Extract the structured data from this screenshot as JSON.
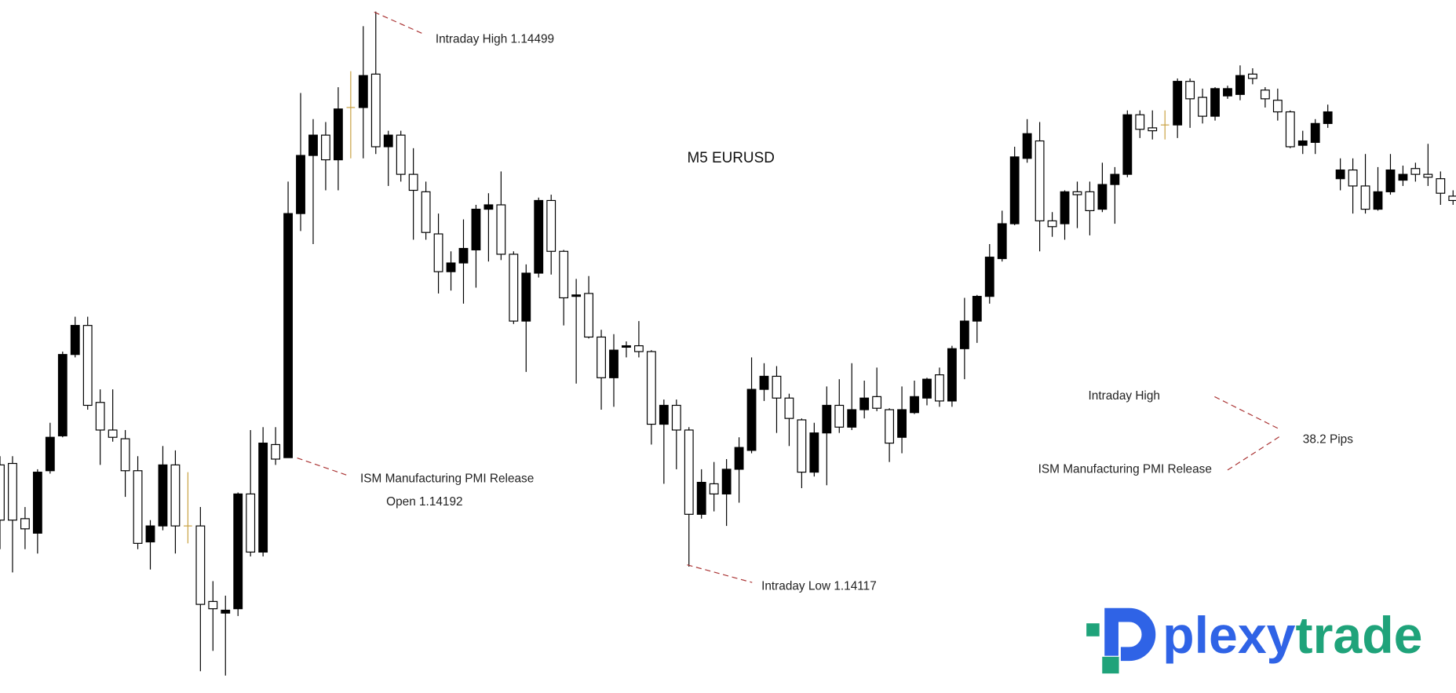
{
  "chart_data": {
    "type": "candlestick",
    "title": "M5 EURUSD",
    "up_color": "#000000",
    "down_color": "#ffffff",
    "doji_color": "#c8a040",
    "ylim": [
      1.1403,
      1.14507
    ],
    "open": [
      1.14187,
      1.14188,
      1.1415,
      1.1414,
      1.14183,
      1.14207,
      1.14263,
      1.14283,
      1.1423,
      1.14211,
      1.14205,
      1.14183,
      1.14134,
      1.14145,
      1.14187,
      1.14145,
      1.14145,
      1.14093,
      1.14085,
      1.14088,
      1.14167,
      1.14127,
      1.14201,
      1.14192,
      1.1436,
      1.144,
      1.14414,
      1.14397,
      1.14433,
      1.14433,
      1.14456,
      1.14406,
      1.14414,
      1.14387,
      1.14375,
      1.14346,
      1.1432,
      1.14326,
      1.14335,
      1.14363,
      1.14366,
      1.14332,
      1.14286,
      1.14319,
      1.14369,
      1.14334,
      1.14303,
      1.14305,
      1.14275,
      1.14247,
      1.14268,
      1.14269,
      1.14265,
      1.14215,
      1.14228,
      1.14211,
      1.14153,
      1.14174,
      1.14167,
      1.14184,
      1.14197,
      1.14239,
      1.14248,
      1.14233,
      1.14218,
      1.14182,
      1.14209,
      1.14228,
      1.14213,
      1.14225,
      1.14234,
      1.14225,
      1.14206,
      1.14223,
      1.14233,
      1.14249,
      1.14231,
      1.14267,
      1.14286,
      1.14303,
      1.14329,
      1.14353,
      1.14398,
      1.1441,
      1.14355,
      1.14353,
      1.14375,
      1.14375,
      1.14363,
      1.1438,
      1.14387,
      1.14428,
      1.14419,
      1.14421,
      1.14421,
      1.14451,
      1.1444,
      1.14427,
      1.14441,
      1.14442,
      1.14456,
      1.14445,
      1.14438,
      1.1443,
      1.14407,
      1.14409,
      1.14422,
      1.14384,
      1.1439,
      1.14379,
      1.14363,
      1.14375,
      1.14383,
      1.14391,
      1.14387,
      1.14384,
      1.14372
    ],
    "high": [
      1.14193,
      1.14193,
      1.14158,
      1.14184,
      1.14216,
      1.14265,
      1.14289,
      1.14289,
      1.14239,
      1.14239,
      1.14211,
      1.14193,
      1.14149,
      1.142,
      1.14197,
      1.14182,
      1.14158,
      1.14107,
      1.14097,
      1.14168,
      1.14211,
      1.14213,
      1.14213,
      1.14382,
      1.14443,
      1.14425,
      1.14423,
      1.14447,
      1.14458,
      1.14489,
      1.14499,
      1.14417,
      1.14417,
      1.14405,
      1.14382,
      1.1436,
      1.14334,
      1.14356,
      1.14366,
      1.14374,
      1.14389,
      1.14334,
      1.14325,
      1.14371,
      1.14373,
      1.14335,
      1.14315,
      1.14317,
      1.1428,
      1.14277,
      1.14272,
      1.14286,
      1.14266,
      1.14232,
      1.14232,
      1.14213,
      1.14184,
      1.14189,
      1.14191,
      1.14206,
      1.14261,
      1.14257,
      1.14255,
      1.14236,
      1.14219,
      1.14216,
      1.14241,
      1.14246,
      1.14257,
      1.14245,
      1.14254,
      1.14226,
      1.14241,
      1.14245,
      1.14247,
      1.14254,
      1.14269,
      1.14302,
      1.14304,
      1.14339,
      1.14362,
      1.14406,
      1.14425,
      1.14423,
      1.14361,
      1.14376,
      1.14382,
      1.14382,
      1.14395,
      1.14392,
      1.14431,
      1.14431,
      1.14431,
      1.14431,
      1.14453,
      1.14453,
      1.14446,
      1.14447,
      1.14448,
      1.14462,
      1.1446,
      1.14447,
      1.14446,
      1.14431,
      1.14417,
      1.14425,
      1.14435,
      1.14398,
      1.14398,
      1.14401,
      1.14392,
      1.14401,
      1.14393,
      1.14395,
      1.14408,
      1.14389,
      1.14376
    ],
    "low": [
      1.14129,
      1.14113,
      1.14129,
      1.14126,
      1.14181,
      1.14206,
      1.14261,
      1.14225,
      1.14187,
      1.14203,
      1.14165,
      1.14129,
      1.14115,
      1.14142,
      1.14126,
      1.14133,
      1.14045,
      1.14059,
      1.14042,
      1.14083,
      1.14124,
      1.14124,
      1.14187,
      1.14192,
      1.14348,
      1.14339,
      1.14376,
      1.14376,
      1.14398,
      1.14398,
      1.14401,
      1.14379,
      1.14382,
      1.14342,
      1.14342,
      1.14305,
      1.14307,
      1.14298,
      1.14309,
      1.14327,
      1.14328,
      1.14284,
      1.14251,
      1.14316,
      1.14318,
      1.14283,
      1.14243,
      1.14274,
      1.14225,
      1.14227,
      1.14261,
      1.14261,
      1.14201,
      1.14174,
      1.14184,
      1.14117,
      1.1415,
      1.14155,
      1.14145,
      1.14161,
      1.14195,
      1.14231,
      1.14209,
      1.142,
      1.14171,
      1.14179,
      1.14173,
      1.14209,
      1.14211,
      1.14219,
      1.14224,
      1.14189,
      1.14195,
      1.14222,
      1.14228,
      1.14227,
      1.14227,
      1.14246,
      1.14271,
      1.14298,
      1.14327,
      1.14352,
      1.14395,
      1.14334,
      1.14344,
      1.14342,
      1.1435,
      1.14345,
      1.14361,
      1.14353,
      1.14385,
      1.14412,
      1.14411,
      1.14411,
      1.14412,
      1.14419,
      1.14422,
      1.14424,
      1.14439,
      1.14438,
      1.14449,
      1.14433,
      1.14424,
      1.14405,
      1.14401,
      1.14401,
      1.14419,
      1.14376,
      1.1436,
      1.1436,
      1.14362,
      1.14373,
      1.14379,
      1.14382,
      1.14379,
      1.14366,
      1.14366
    ],
    "close": [
      1.14149,
      1.14149,
      1.14143,
      1.14182,
      1.14206,
      1.14263,
      1.14283,
      1.14228,
      1.14211,
      1.14206,
      1.14183,
      1.14133,
      1.14145,
      1.14187,
      1.14145,
      1.14145,
      1.14091,
      1.14088,
      1.14087,
      1.14167,
      1.14127,
      1.14202,
      1.14191,
      1.1436,
      1.144,
      1.14414,
      1.14397,
      1.14432,
      1.14433,
      1.14455,
      1.14406,
      1.14414,
      1.14387,
      1.14376,
      1.14347,
      1.1432,
      1.14326,
      1.14336,
      1.14363,
      1.14366,
      1.14332,
      1.14286,
      1.14319,
      1.14369,
      1.14334,
      1.14302,
      1.14304,
      1.14275,
      1.14247,
      1.14266,
      1.14269,
      1.14265,
      1.14215,
      1.14228,
      1.14211,
      1.14153,
      1.14175,
      1.14167,
      1.14184,
      1.14199,
      1.14239,
      1.14248,
      1.14233,
      1.14219,
      1.14182,
      1.14209,
      1.14228,
      1.14213,
      1.14225,
      1.14233,
      1.14226,
      1.14202,
      1.14225,
      1.14234,
      1.14246,
      1.14231,
      1.14267,
      1.14286,
      1.14303,
      1.1433,
      1.14353,
      1.14399,
      1.14415,
      1.14355,
      1.14351,
      1.14375,
      1.14373,
      1.14362,
      1.1438,
      1.14387,
      1.14428,
      1.14418,
      1.14417,
      1.14421,
      1.14451,
      1.14439,
      1.14427,
      1.14446,
      1.14446,
      1.14455,
      1.14453,
      1.14439,
      1.1443,
      1.14406,
      1.1441,
      1.14422,
      1.1443,
      1.1439,
      1.14379,
      1.14363,
      1.14375,
      1.1439,
      1.14387,
      1.14387,
      1.14385,
      1.14374,
      1.14369
    ],
    "annotations": [
      "Intraday High 1.14499",
      "ISM Manufacturing PMI Release",
      "Open 1.14192",
      "Intraday Low 1.14117",
      "Intraday High",
      "ISM Manufacturing PMI Release",
      "38.2 Pips"
    ]
  },
  "logo": {
    "text": [
      "plexy",
      "trade"
    ]
  }
}
